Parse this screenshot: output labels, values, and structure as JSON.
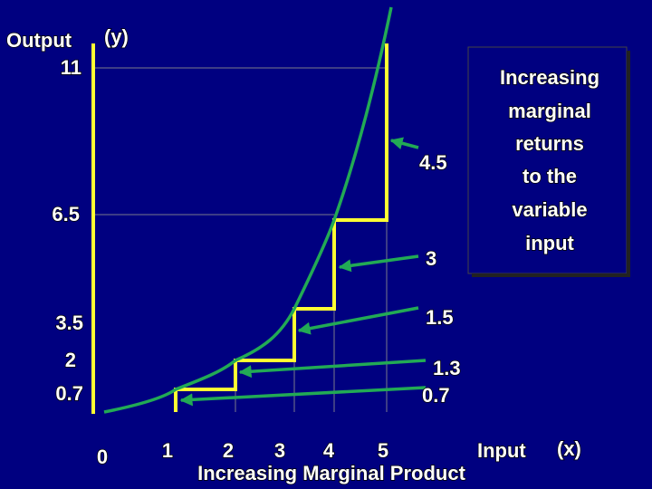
{
  "axes": {
    "y_label": "Output",
    "y_unit": "(y)",
    "x_label": "Input",
    "x_unit": "(x)"
  },
  "y_labels": [
    "11",
    "6.5",
    "3.5",
    "2",
    "0.7"
  ],
  "x_labels": [
    "0",
    "1",
    "2",
    "3",
    "4",
    "5"
  ],
  "marginal_labels": [
    "4.5",
    "3",
    "1.5",
    "1.3",
    "0.7"
  ],
  "note": {
    "lines": [
      "Increasing",
      "marginal",
      "returns",
      "to the",
      "variable",
      "input"
    ]
  },
  "footer": "Increasing Marginal Product"
}
